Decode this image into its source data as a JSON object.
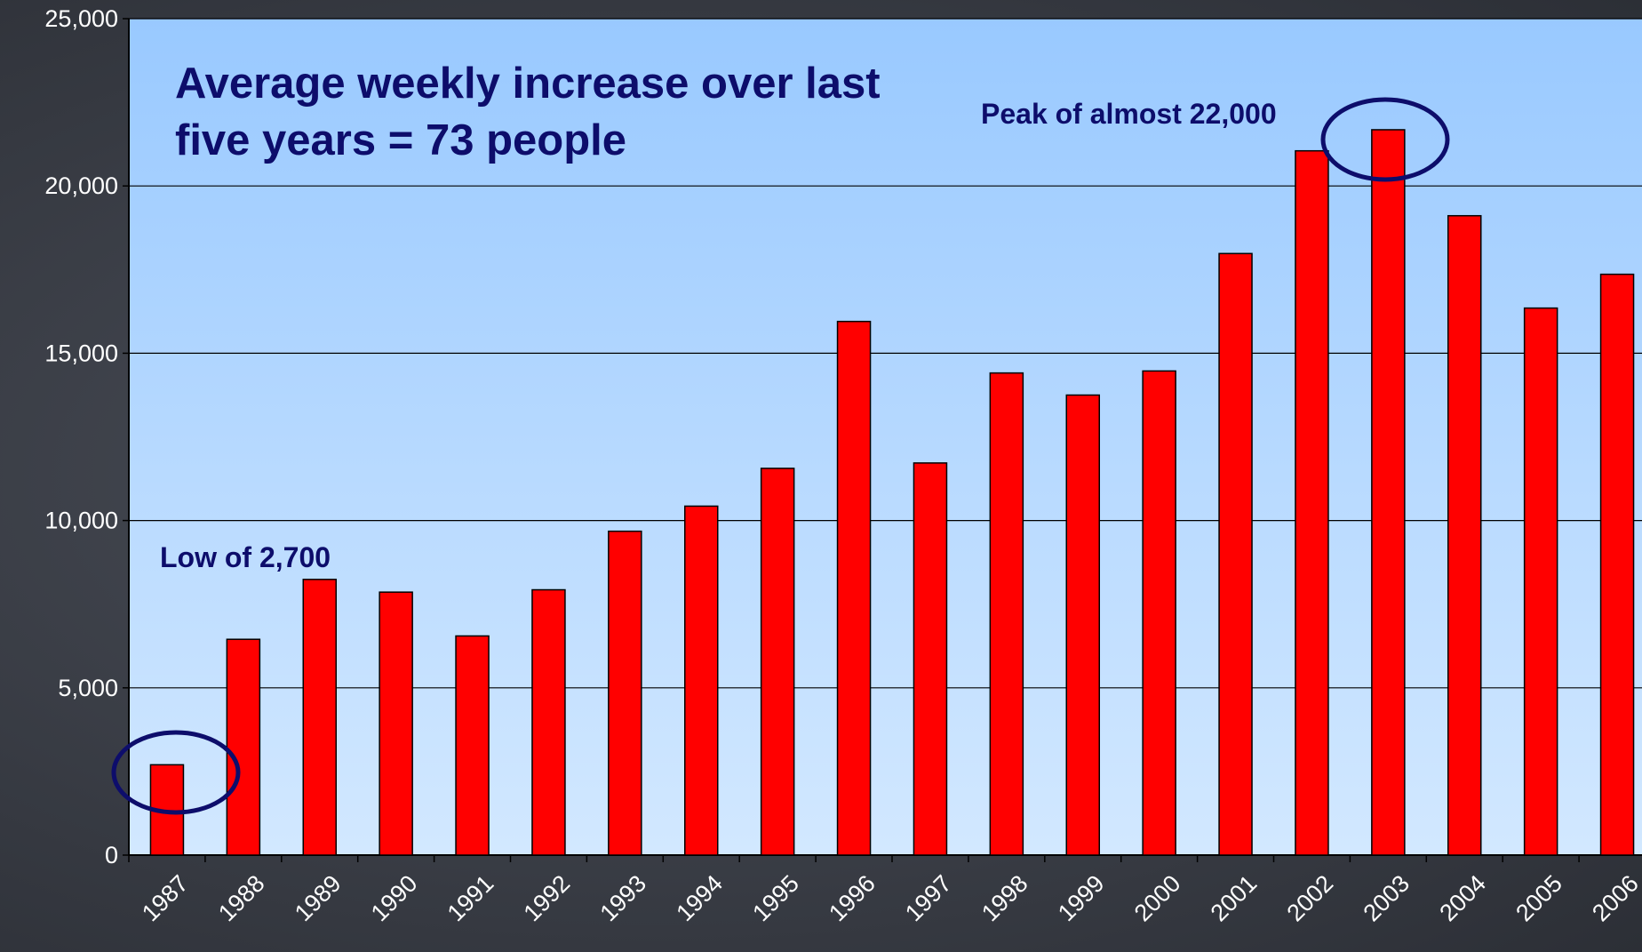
{
  "chart_data": {
    "type": "bar",
    "title": "Average weekly increase over last five years = 73 people",
    "annotations": [
      "Peak of almost 22,000",
      "Low of 2,700"
    ],
    "categories": [
      "1987",
      "1988",
      "1989",
      "1990",
      "1991",
      "1992",
      "1993",
      "1994",
      "1995",
      "1996",
      "1997",
      "1998",
      "1999",
      "2000",
      "2001",
      "2002",
      "2003",
      "2004",
      "2005",
      "2006"
    ],
    "values": [
      2700,
      6450,
      8240,
      7860,
      6550,
      7930,
      9680,
      10430,
      11560,
      15950,
      11720,
      14410,
      13750,
      14470,
      17980,
      21050,
      21680,
      19110,
      16350,
      17360
    ],
    "color": "#ff0000",
    "ylim": [
      0,
      25000
    ],
    "yticks": [
      0,
      {
        "value": 5000,
        "label": "5,000"
      },
      {
        "value": 10000,
        "label": "10,000"
      },
      {
        "value": 15000,
        "label": "15,000"
      },
      {
        "value": 20000,
        "label": "20,000"
      },
      {
        "value": 25000,
        "label": "25,000"
      }
    ],
    "grid": true
  }
}
